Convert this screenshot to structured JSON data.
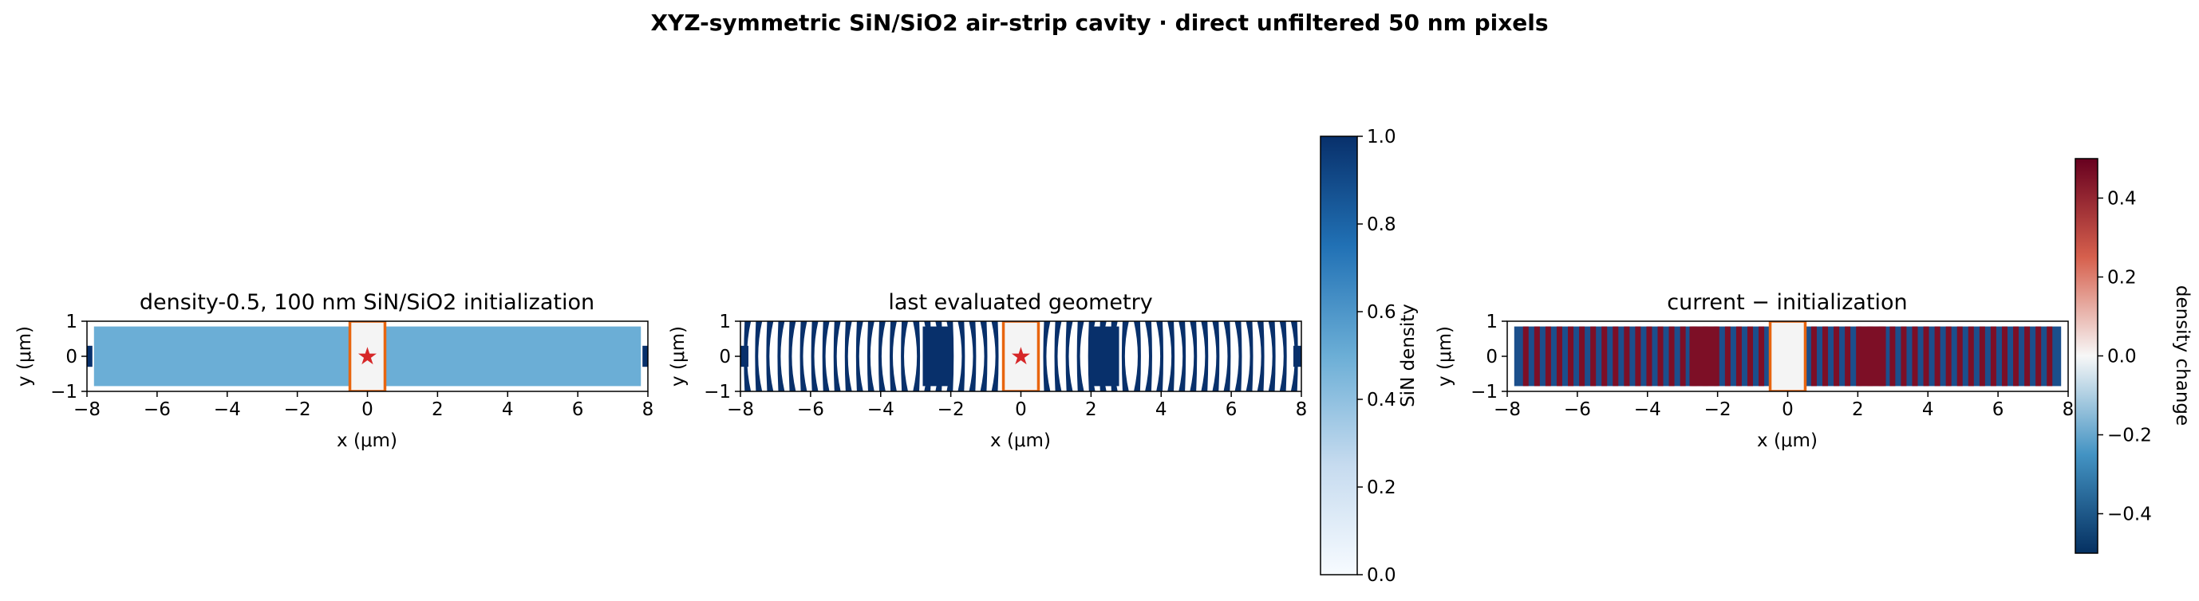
{
  "figure": {
    "suptitle": "XYZ-symmetric SiN/SiO2 air-strip cavity · direct unfiltered 50 nm pixels"
  },
  "chart_data": [
    {
      "type": "heatmap",
      "title": "density-0.5, 100 nm SiN/SiO2 initialization",
      "xlabel": "x (μm)",
      "ylabel": "y (μm)",
      "xlim": [
        -8,
        8
      ],
      "ylim": [
        -1,
        1
      ],
      "xticks": [
        "−8",
        "−6",
        "−4",
        "−2",
        "0",
        "2",
        "4",
        "6",
        "8"
      ],
      "yticks": [
        "−1",
        "0",
        "1"
      ],
      "cmap": "Blues",
      "fill_density": 0.5,
      "design_region_x": [
        -7.8,
        7.8
      ],
      "design_region_y": [
        -0.85,
        0.85
      ],
      "bus_waveguide_density": 1.0,
      "air_strip_x": [
        -0.5,
        0.5
      ],
      "air_strip_y": [
        -1,
        1
      ],
      "air_strip_outline_color": "#e8650f",
      "source_marker": {
        "x": 0,
        "y": 0,
        "symbol": "★",
        "color": "#d62728"
      }
    },
    {
      "type": "heatmap",
      "title": "last evaluated geometry",
      "xlabel": "x (μm)",
      "ylabel": "y (μm)",
      "xlim": [
        -8,
        8
      ],
      "ylim": [
        -1,
        1
      ],
      "xticks": [
        "−8",
        "−6",
        "−4",
        "−2",
        "0",
        "2",
        "4",
        "6",
        "8"
      ],
      "yticks": [
        "−1",
        "0",
        "1"
      ],
      "cmap": "Blues",
      "pixel_size_um": 0.05,
      "stripe_pitch_um": 0.32,
      "air_strip_x": [
        -0.5,
        0.5
      ],
      "air_strip_y": [
        -1,
        1
      ],
      "air_strip_outline_color": "#e8650f",
      "source_marker": {
        "x": 0,
        "y": 0,
        "symbol": "★",
        "color": "#d62728"
      },
      "colorbar": {
        "label": "SiN density",
        "range": [
          0,
          1
        ],
        "ticks": [
          "0.0",
          "0.2",
          "0.4",
          "0.6",
          "0.8",
          "1.0"
        ],
        "colors": [
          "#f7fbff",
          "#c6dbef",
          "#6baed6",
          "#2171b5",
          "#08306b"
        ]
      }
    },
    {
      "type": "heatmap",
      "title": "current − initialization",
      "xlabel": "x (μm)",
      "ylabel": "y (μm)",
      "xlim": [
        -8,
        8
      ],
      "ylim": [
        -1,
        1
      ],
      "xticks": [
        "−8",
        "−6",
        "−4",
        "−2",
        "0",
        "2",
        "4",
        "6",
        "8"
      ],
      "yticks": [
        "−1",
        "0",
        "1"
      ],
      "cmap": "RdBu_r",
      "air_strip_x": [
        -0.5,
        0.5
      ],
      "air_strip_y": [
        -1,
        1
      ],
      "air_strip_outline_color": "#e8650f",
      "colorbar": {
        "label": "density change",
        "range": [
          -0.5,
          0.5
        ],
        "ticks": [
          "−0.4",
          "−0.2",
          "0.0",
          "0.2",
          "0.4"
        ],
        "tick_values": [
          -0.4,
          -0.2,
          0.0,
          0.2,
          0.4
        ],
        "colors": [
          "#053061",
          "#4393c3",
          "#f7f7f7",
          "#d6604d",
          "#67001f"
        ]
      }
    }
  ]
}
